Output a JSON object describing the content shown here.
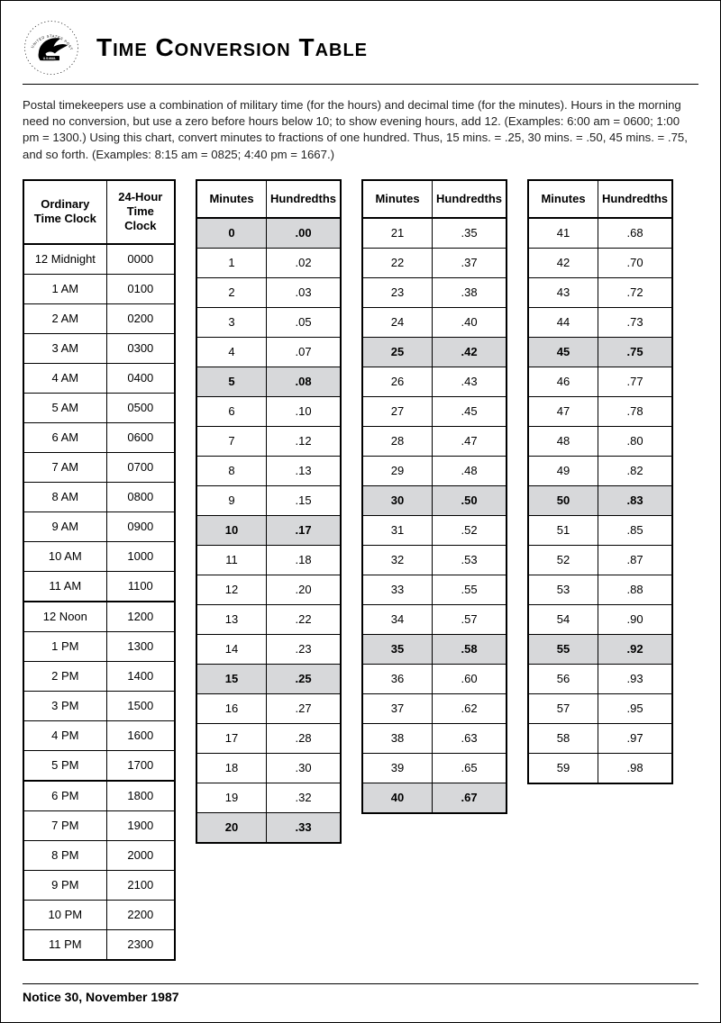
{
  "title": "Time Conversion Table",
  "intro": "Postal timekeepers use a combination of military time (for the hours) and decimal time (for the minutes). Hours in the morning need no conversion, but use a zero before hours below 10; to show evening hours, add 12. (Examples: 6:00 am = 0600; 1:00 pm = 1300.) Using this chart, convert minutes to fractions of one hundred. Thus, 15 mins. = .25, 30 mins. = .50, 45 mins. = .75, and so forth. (Examples: 8:15 am = 0825; 4:40 pm = 1667.)",
  "footer": "Notice 30, November 1987",
  "logo_label": "United States Postal Service — U.S. Mail",
  "colors": {
    "border": "#000000",
    "highlight_bg": "#d7d8da",
    "text": "#000000",
    "background": "#ffffff"
  },
  "typography": {
    "title_size_pt": 21,
    "body_size_pt": 10,
    "table_size_pt": 10,
    "font_family": "Arial"
  },
  "clock_table": {
    "columns": [
      "Ordinary Time Clock",
      "24-Hour Time Clock"
    ],
    "separator_before_rows": [
      12,
      18
    ],
    "rows": [
      [
        "12 Midnight",
        "0000"
      ],
      [
        "1 AM",
        "0100"
      ],
      [
        "2 AM",
        "0200"
      ],
      [
        "3 AM",
        "0300"
      ],
      [
        "4 AM",
        "0400"
      ],
      [
        "5 AM",
        "0500"
      ],
      [
        "6 AM",
        "0600"
      ],
      [
        "7 AM",
        "0700"
      ],
      [
        "8 AM",
        "0800"
      ],
      [
        "9 AM",
        "0900"
      ],
      [
        "10 AM",
        "1000"
      ],
      [
        "11 AM",
        "1100"
      ],
      [
        "12 Noon",
        "1200"
      ],
      [
        "1 PM",
        "1300"
      ],
      [
        "2 PM",
        "1400"
      ],
      [
        "3 PM",
        "1500"
      ],
      [
        "4 PM",
        "1600"
      ],
      [
        "5 PM",
        "1700"
      ],
      [
        "6 PM",
        "1800"
      ],
      [
        "7 PM",
        "1900"
      ],
      [
        "8 PM",
        "2000"
      ],
      [
        "9 PM",
        "2100"
      ],
      [
        "10 PM",
        "2200"
      ],
      [
        "11 PM",
        "2300"
      ]
    ]
  },
  "minutes_tables": {
    "columns": [
      "Minutes",
      "Hundredths"
    ],
    "highlight_minutes": [
      0,
      5,
      10,
      15,
      20,
      25,
      30,
      35,
      40,
      45,
      50,
      55
    ],
    "groups": [
      [
        [
          "0",
          ".00"
        ],
        [
          "1",
          ".02"
        ],
        [
          "2",
          ".03"
        ],
        [
          "3",
          ".05"
        ],
        [
          "4",
          ".07"
        ],
        [
          "5",
          ".08"
        ],
        [
          "6",
          ".10"
        ],
        [
          "7",
          ".12"
        ],
        [
          "8",
          ".13"
        ],
        [
          "9",
          ".15"
        ],
        [
          "10",
          ".17"
        ],
        [
          "11",
          ".18"
        ],
        [
          "12",
          ".20"
        ],
        [
          "13",
          ".22"
        ],
        [
          "14",
          ".23"
        ],
        [
          "15",
          ".25"
        ],
        [
          "16",
          ".27"
        ],
        [
          "17",
          ".28"
        ],
        [
          "18",
          ".30"
        ],
        [
          "19",
          ".32"
        ],
        [
          "20",
          ".33"
        ]
      ],
      [
        [
          "21",
          ".35"
        ],
        [
          "22",
          ".37"
        ],
        [
          "23",
          ".38"
        ],
        [
          "24",
          ".40"
        ],
        [
          "25",
          ".42"
        ],
        [
          "26",
          ".43"
        ],
        [
          "27",
          ".45"
        ],
        [
          "28",
          ".47"
        ],
        [
          "29",
          ".48"
        ],
        [
          "30",
          ".50"
        ],
        [
          "31",
          ".52"
        ],
        [
          "32",
          ".53"
        ],
        [
          "33",
          ".55"
        ],
        [
          "34",
          ".57"
        ],
        [
          "35",
          ".58"
        ],
        [
          "36",
          ".60"
        ],
        [
          "37",
          ".62"
        ],
        [
          "38",
          ".63"
        ],
        [
          "39",
          ".65"
        ],
        [
          "40",
          ".67"
        ]
      ],
      [
        [
          "41",
          ".68"
        ],
        [
          "42",
          ".70"
        ],
        [
          "43",
          ".72"
        ],
        [
          "44",
          ".73"
        ],
        [
          "45",
          ".75"
        ],
        [
          "46",
          ".77"
        ],
        [
          "47",
          ".78"
        ],
        [
          "48",
          ".80"
        ],
        [
          "49",
          ".82"
        ],
        [
          "50",
          ".83"
        ],
        [
          "51",
          ".85"
        ],
        [
          "52",
          ".87"
        ],
        [
          "53",
          ".88"
        ],
        [
          "54",
          ".90"
        ],
        [
          "55",
          ".92"
        ],
        [
          "56",
          ".93"
        ],
        [
          "57",
          ".95"
        ],
        [
          "58",
          ".97"
        ],
        [
          "59",
          ".98"
        ]
      ]
    ]
  }
}
